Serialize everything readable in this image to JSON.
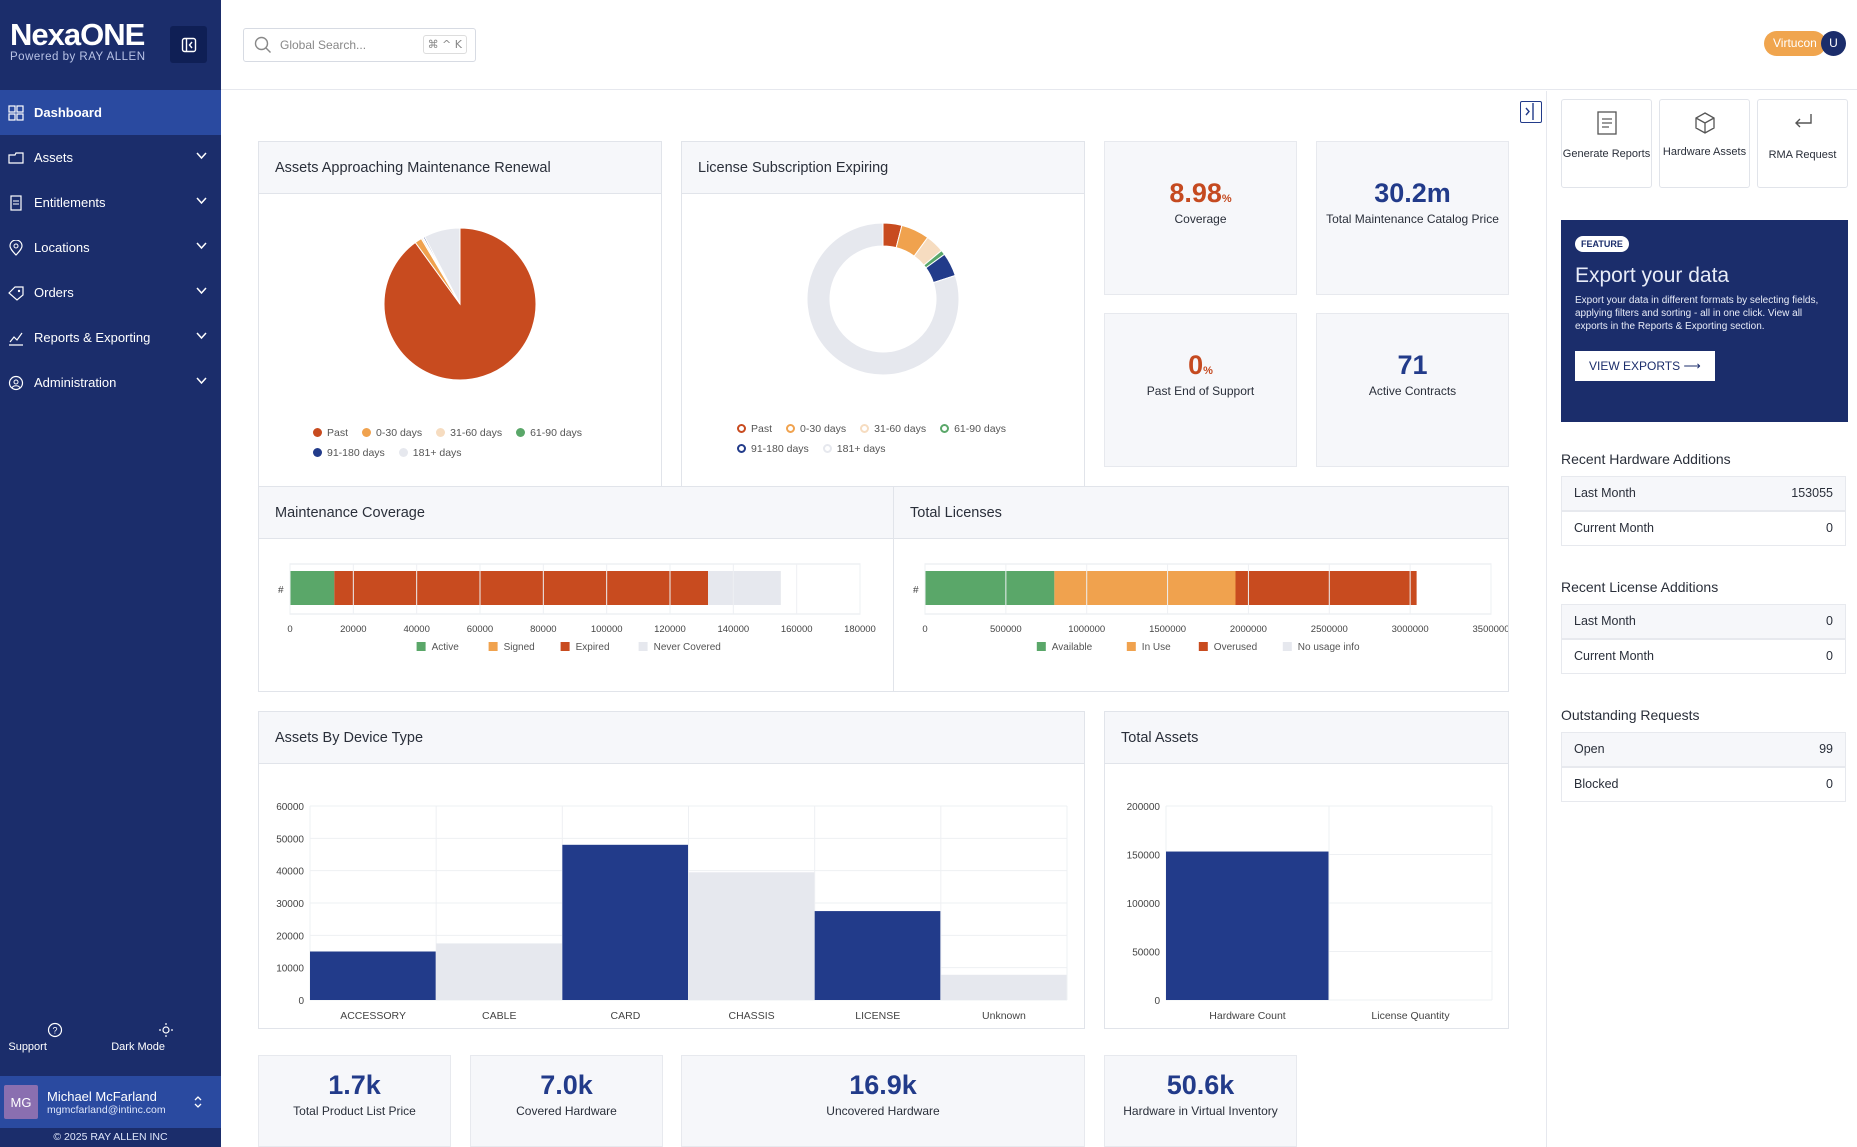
{
  "brand": {
    "name": "NexaONE",
    "sub": "Powered by RAY ALLEN"
  },
  "nav": [
    {
      "label": "Dashboard",
      "icon": "dashboard-icon"
    },
    {
      "label": "Assets",
      "icon": "assets-icon"
    },
    {
      "label": "Entitlements",
      "icon": "entitlements-icon"
    },
    {
      "label": "Locations",
      "icon": "location-icon"
    },
    {
      "label": "Orders",
      "icon": "orders-icon"
    },
    {
      "label": "Reports & Exporting",
      "icon": "reports-icon"
    },
    {
      "label": "Administration",
      "icon": "admin-icon"
    }
  ],
  "footer": {
    "support": "Support",
    "dark_mode": "Dark Mode",
    "user_initials": "MG",
    "user_name": "Michael McFarland",
    "user_email": "mgmcfarland@intinc.com",
    "copyright": "© 2025 RAY ALLEN INC"
  },
  "search": {
    "placeholder": "Global Search...",
    "shortcut": "⌘ ^ K"
  },
  "tenant": {
    "name": "Virtucon",
    "initial": "U"
  },
  "cards": {
    "assets_renewal": "Assets Approaching Maintenance Renewal",
    "license_expiring": "License Subscription Expiring",
    "maint_coverage": "Maintenance Coverage",
    "total_licenses": "Total Licenses",
    "assets_device": "Assets By Device Type",
    "total_assets": "Total Assets"
  },
  "kpis": {
    "coverage": {
      "value": "8.98",
      "unit": "%",
      "label": "Coverage"
    },
    "catalog": {
      "value": "30.2m",
      "label": "Total Maintenance Catalog Price"
    },
    "past_eos": {
      "value": "0",
      "unit": "%",
      "label": "Past End of Support"
    },
    "contracts": {
      "value": "71",
      "label": "Active Contracts"
    },
    "list_price": {
      "value": "1.7k",
      "label": "Total Product List Price"
    },
    "covered": {
      "value": "7.0k",
      "label": "Covered Hardware"
    },
    "uncovered": {
      "value": "16.9k",
      "label": "Uncovered Hardware"
    },
    "virtual": {
      "value": "50.6k",
      "label": "Hardware in Virtual Inventory"
    }
  },
  "colors": {
    "past": "#c84b1f",
    "d0_30": "#f0a24e",
    "d31_60": "#f6dcc0",
    "d61_90": "#5aa769",
    "d91_180": "#223b8a",
    "d181": "#e6e8ee"
  },
  "chart_data": [
    {
      "type": "pie",
      "title": "Assets Approaching Maintenance Renewal",
      "categories": [
        "Past",
        "0-30 days",
        "31-60 days",
        "61-90 days",
        "91-180 days",
        "181+ days"
      ],
      "values": [
        90,
        1.5,
        0.3,
        0.2,
        0.3,
        7.7
      ]
    },
    {
      "type": "pie",
      "title": "License Subscription Expiring",
      "categories": [
        "Past",
        "0-30 days",
        "31-60 days",
        "61-90 days",
        "91-180 days",
        "181+ days"
      ],
      "values": [
        4,
        6,
        4,
        1,
        5,
        80
      ]
    },
    {
      "type": "bar",
      "title": "Maintenance Coverage",
      "categories": [
        "#"
      ],
      "series": [
        {
          "name": "Active",
          "values": [
            14000
          ]
        },
        {
          "name": "Signed",
          "values": [
            0
          ]
        },
        {
          "name": "Expired",
          "values": [
            118000
          ]
        },
        {
          "name": "Never Covered",
          "values": [
            23000
          ]
        }
      ],
      "xticks": [
        "0",
        "20000",
        "40000",
        "60000",
        "80000",
        "100000",
        "120000",
        "140000",
        "160000",
        "180000"
      ],
      "xlim": [
        0,
        180000
      ]
    },
    {
      "type": "bar",
      "title": "Total Licenses",
      "categories": [
        "#"
      ],
      "series": [
        {
          "name": "Available",
          "values": [
            800000
          ]
        },
        {
          "name": "In Use",
          "values": [
            1120000
          ]
        },
        {
          "name": "Overused",
          "values": [
            1120000
          ]
        },
        {
          "name": "No usage info",
          "values": [
            0
          ]
        }
      ],
      "xticks": [
        "0",
        "500000",
        "1000000",
        "1500000",
        "2000000",
        "2500000",
        "3000000",
        "3500000"
      ],
      "xlim": [
        0,
        3500000
      ]
    },
    {
      "type": "bar",
      "title": "Assets By Device Type",
      "categories": [
        "ACCESSORY",
        "CABLE",
        "CARD",
        "CHASSIS",
        "LICENSE",
        "Unknown"
      ],
      "values": [
        15000,
        17500,
        48000,
        39500,
        27500,
        7800
      ],
      "yticks": [
        "0",
        "10000",
        "20000",
        "30000",
        "40000",
        "50000",
        "60000"
      ],
      "ylim": [
        0,
        60000
      ]
    },
    {
      "type": "bar",
      "title": "Total Assets",
      "categories": [
        "Hardware Count",
        "License Quantity"
      ],
      "values": [
        153055,
        0
      ],
      "yticks": [
        "0",
        "50000",
        "100000",
        "150000",
        "200000"
      ],
      "ylim": [
        0,
        200000
      ]
    }
  ],
  "quick_actions": [
    {
      "label": "Generate Reports",
      "icon": "report-doc-icon"
    },
    {
      "label": "Hardware Assets",
      "icon": "hardware-box-icon"
    },
    {
      "label": "RMA Request",
      "icon": "return-arrow-icon"
    }
  ],
  "promo": {
    "badge": "FEATURE",
    "title": "Export your data",
    "text": "Export your data in different formats by selecting fields, applying filters and sorting - all in one click. View all exports in the Reports & Exporting section.",
    "button": "VIEW EXPORTS ⟶"
  },
  "hardware_additions": {
    "title": "Recent Hardware Additions",
    "rows": [
      {
        "label": "Last Month",
        "value": "153055"
      },
      {
        "label": "Current Month",
        "value": "0"
      }
    ]
  },
  "license_additions": {
    "title": "Recent License Additions",
    "rows": [
      {
        "label": "Last Month",
        "value": "0"
      },
      {
        "label": "Current Month",
        "value": "0"
      }
    ]
  },
  "outstanding": {
    "title": "Outstanding Requests",
    "rows": [
      {
        "label": "Open",
        "value": "99"
      },
      {
        "label": "Blocked",
        "value": "0"
      }
    ]
  }
}
